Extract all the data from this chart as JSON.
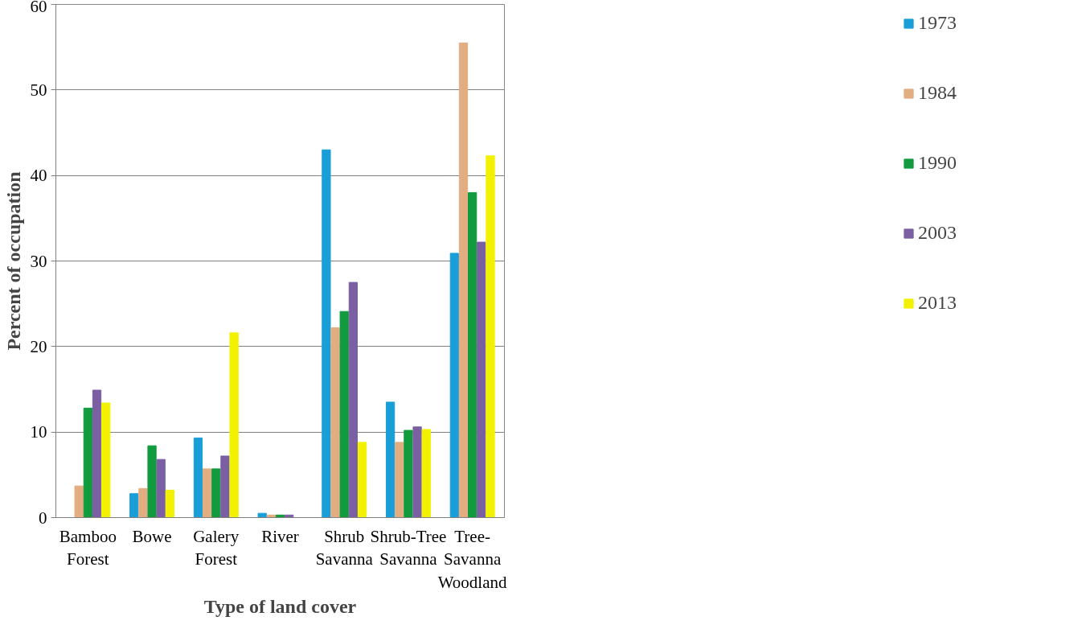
{
  "chart_data": {
    "type": "bar",
    "xlabel": "Type of land cover",
    "ylabel": "Percent of occupation",
    "categories": [
      "Bamboo\nForest",
      "Bowe",
      "Galery\nForest",
      "River",
      "Shrub\nSavanna",
      "Shrub-Tree\nSavanna",
      "Tree-\nSavanna\nWoodland"
    ],
    "series": [
      {
        "name": "1973",
        "color": "#1a9ed8",
        "values": [
          0,
          2.8,
          9.3,
          0.5,
          43.0,
          13.5,
          30.9
        ]
      },
      {
        "name": "1984",
        "color": "#e3ad82",
        "values": [
          3.7,
          3.4,
          5.7,
          0.3,
          22.2,
          8.8,
          55.5
        ]
      },
      {
        "name": "1990",
        "color": "#119a3e",
        "values": [
          12.8,
          8.4,
          5.7,
          0.3,
          24.1,
          10.2,
          38.0
        ]
      },
      {
        "name": "2003",
        "color": "#7a5fa2",
        "values": [
          14.9,
          6.8,
          7.2,
          0.3,
          27.5,
          10.6,
          32.2
        ]
      },
      {
        "name": "2013",
        "color": "#f2f200",
        "values": [
          13.4,
          3.2,
          21.6,
          0,
          8.8,
          10.3,
          42.3
        ]
      }
    ],
    "ylim": [
      0,
      60
    ],
    "yticks": [
      0,
      10,
      20,
      30,
      40,
      50,
      60
    ],
    "grid": "y",
    "legend": "right"
  }
}
